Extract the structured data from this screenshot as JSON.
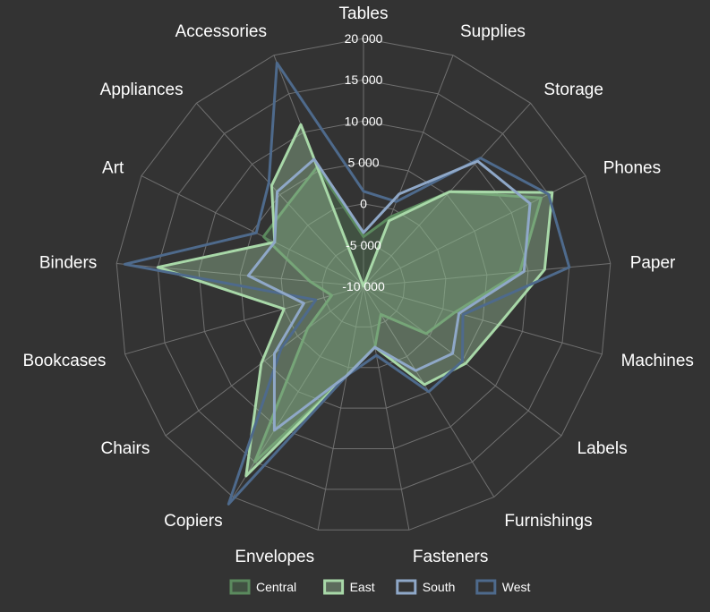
{
  "chart_data": {
    "type": "radar",
    "title": "",
    "categories": [
      "Tables",
      "Supplies",
      "Storage",
      "Phones",
      "Paper",
      "Machines",
      "Labels",
      "Furnishings",
      "Fasteners",
      "Envelopes",
      "Copiers",
      "Chairs",
      "Bookcases",
      "Binders",
      "Art",
      "Appliances",
      "Accessories"
    ],
    "r_ticks": [
      -10000,
      -5000,
      0,
      5000,
      10000,
      15000,
      20000
    ],
    "r_tick_labels": [
      "-10 000",
      "-5 000",
      "0",
      "5 000",
      "10 000",
      "15 000",
      "20 000"
    ],
    "r_range": [
      -10000,
      20000
    ],
    "grid": true,
    "legend_position": "bottom",
    "series": [
      {
        "name": "Central",
        "color": "#5b8a5e",
        "fill": true,
        "values": [
          -4000,
          -1000,
          5500,
          14000,
          9000,
          1500,
          -500,
          -6000,
          -2500,
          1000,
          15000,
          -1500,
          -6000,
          -3500,
          3500,
          3500,
          5500
        ]
      },
      {
        "name": "East",
        "color": "#a8d8a8",
        "fill": true,
        "values": [
          -10000,
          -1500,
          5500,
          15500,
          12000,
          7000,
          5500,
          4000,
          -2500,
          1000,
          17000,
          5500,
          0,
          15000,
          2000,
          6500,
          11000
        ]
      },
      {
        "name": "South",
        "color": "#8fa8c8",
        "fill": false,
        "values": [
          -3500,
          2000,
          10500,
          12500,
          9500,
          2000,
          3500,
          2000,
          -2500,
          1000,
          10500,
          3500,
          -2500,
          4000,
          2000,
          5500,
          6500
        ]
      },
      {
        "name": "West",
        "color": "#4e6a8c",
        "fill": false,
        "values": [
          1500,
          1000,
          11000,
          15000,
          15000,
          2500,
          5000,
          5000,
          -1500,
          1000,
          21000,
          2500,
          -4000,
          19000,
          4500,
          7000,
          19000
        ]
      }
    ]
  }
}
